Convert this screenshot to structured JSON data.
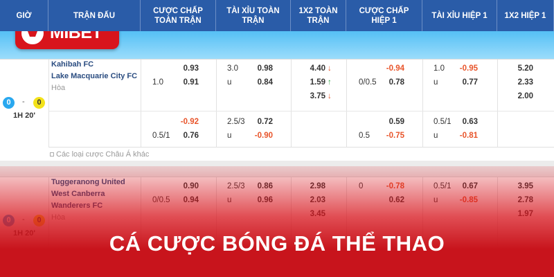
{
  "logo": "MIBET",
  "header": {
    "columns": [
      "GIỜ",
      "TRẬN ĐẤU",
      "CƯỢC CHẤP TOÀN TRẬN",
      "TÀI XỈU TOÀN TRẬN",
      "1X2 TOÀN TRẬN",
      "CƯỢC CHẤP HIỆP 1",
      "TÀI XỈU HIỆP 1",
      "1X2 HIỆP 1"
    ]
  },
  "matches": [
    {
      "score": [
        "0",
        "0"
      ],
      "separator": "-",
      "time": "1H 20'",
      "teams": [
        "Kahibah FC",
        "Lake Macquarie City FC"
      ],
      "draw": "Hòa",
      "markets": [
        {
          "ft_handicap": {
            "lines": [
              null,
              "1.0"
            ],
            "odds": [
              "0.93",
              "0.91"
            ]
          },
          "ft_over_under": {
            "lines": [
              "3.0",
              "u"
            ],
            "odds": [
              "0.98",
              "0.84"
            ]
          },
          "ft_1x2": {
            "odds": [
              "4.40",
              "1.59",
              "3.75"
            ],
            "trend": [
              "↓",
              "↑",
              "↓"
            ]
          },
          "h1_handicap": {
            "lines": [
              null,
              "0/0.5"
            ],
            "odds": [
              "-0.94",
              "0.78"
            ]
          },
          "h1_over_under": {
            "lines": [
              "1.0",
              "u"
            ],
            "odds": [
              "-0.95",
              "0.77"
            ]
          },
          "h1_1x2": {
            "odds": [
              "5.20",
              "2.33",
              "2.00"
            ]
          }
        },
        {
          "ft_handicap": {
            "lines": [
              null,
              "0.5/1"
            ],
            "odds": [
              "-0.92",
              "0.76"
            ]
          },
          "ft_over_under": {
            "lines": [
              "2.5/3",
              "u"
            ],
            "odds": [
              "0.72",
              "-0.90"
            ]
          },
          "h1_handicap": {
            "lines": [
              null,
              "0.5"
            ],
            "odds": [
              "0.59",
              "-0.75"
            ]
          },
          "h1_over_under": {
            "lines": [
              "0.5/1",
              "u"
            ],
            "odds": [
              "0.63",
              "-0.81"
            ]
          }
        }
      ],
      "more": "Các loại cược Châu Á khác"
    },
    {
      "score": [
        "0",
        "0"
      ],
      "separator": "-",
      "time": "1H 20'",
      "teams": [
        "Tuggeranong United",
        "West Canberra Wanderers FC"
      ],
      "draw": "Hòa",
      "markets": [
        {
          "ft_handicap": {
            "lines": [
              null,
              "0/0.5"
            ],
            "odds": [
              "0.90",
              "0.94"
            ]
          },
          "ft_over_under": {
            "lines": [
              "2.5/3",
              "u"
            ],
            "odds": [
              "0.86",
              "0.96"
            ]
          },
          "ft_1x2": {
            "odds": [
              "2.98",
              "2.03",
              "3.45"
            ]
          },
          "h1_handicap": {
            "lines": [
              "0",
              null
            ],
            "odds": [
              "-0.78",
              "0.62"
            ]
          },
          "h1_over_under": {
            "lines": [
              "0.5/1",
              "u"
            ],
            "odds": [
              "0.67",
              "-0.85"
            ]
          },
          "h1_1x2": {
            "odds": [
              "3.95",
              "2.78",
              "1.97"
            ]
          }
        }
      ]
    }
  ],
  "banner": "CÁ CƯỢC BÓNG ĐÁ THỂ THAO"
}
